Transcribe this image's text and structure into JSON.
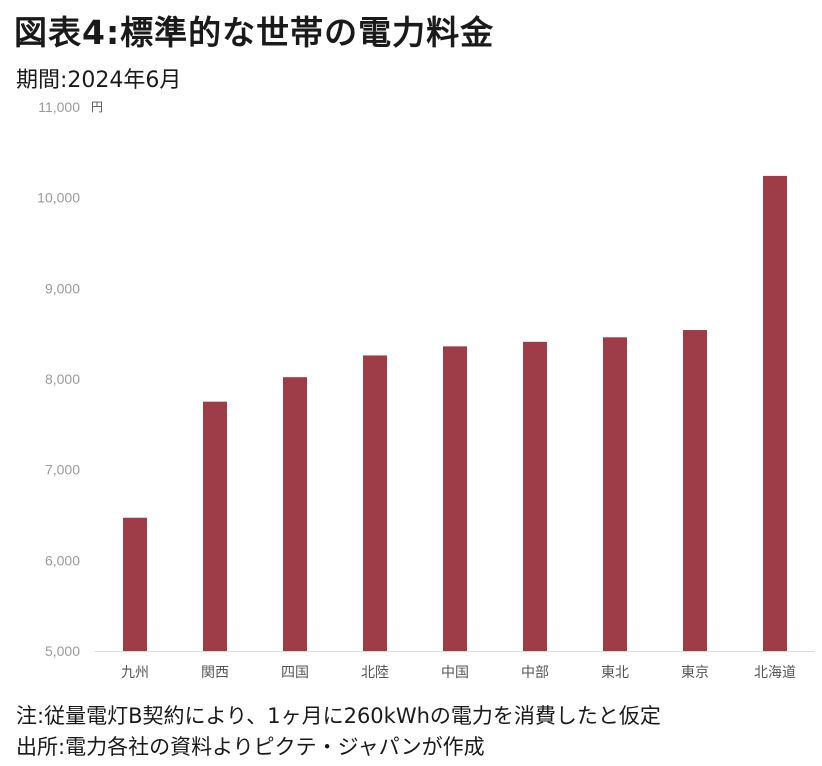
{
  "title": "図表4:標準的な世帯の電力料金",
  "subtitle": "期間:2024年6月",
  "notes": {
    "note1": "注:従量電灯B契約により、1ヶ月に260kWhの電力を消費したと仮定",
    "note2": "出所:電力各社の資料よりピクテ・ジャパンが作成"
  },
  "chart_data": {
    "type": "bar",
    "categories": [
      "九州",
      "関西",
      "四国",
      "北陸",
      "中国",
      "中部",
      "東北",
      "東京",
      "北海道"
    ],
    "series": [
      {
        "values": [
          6470,
          7750,
          8020,
          8260,
          8360,
          8410,
          8460,
          8540,
          10240
        ]
      }
    ],
    "ylim": [
      5000,
      11000
    ],
    "yticks": [
      5000,
      6000,
      7000,
      8000,
      9000,
      10000,
      11000
    ],
    "ytick_labels": [
      "5,000",
      "6,000",
      "7,000",
      "8,000",
      "9,000",
      "10,000",
      "11,000"
    ],
    "yunit": "円",
    "bar_color": "#9e3d48",
    "grid": false
  }
}
